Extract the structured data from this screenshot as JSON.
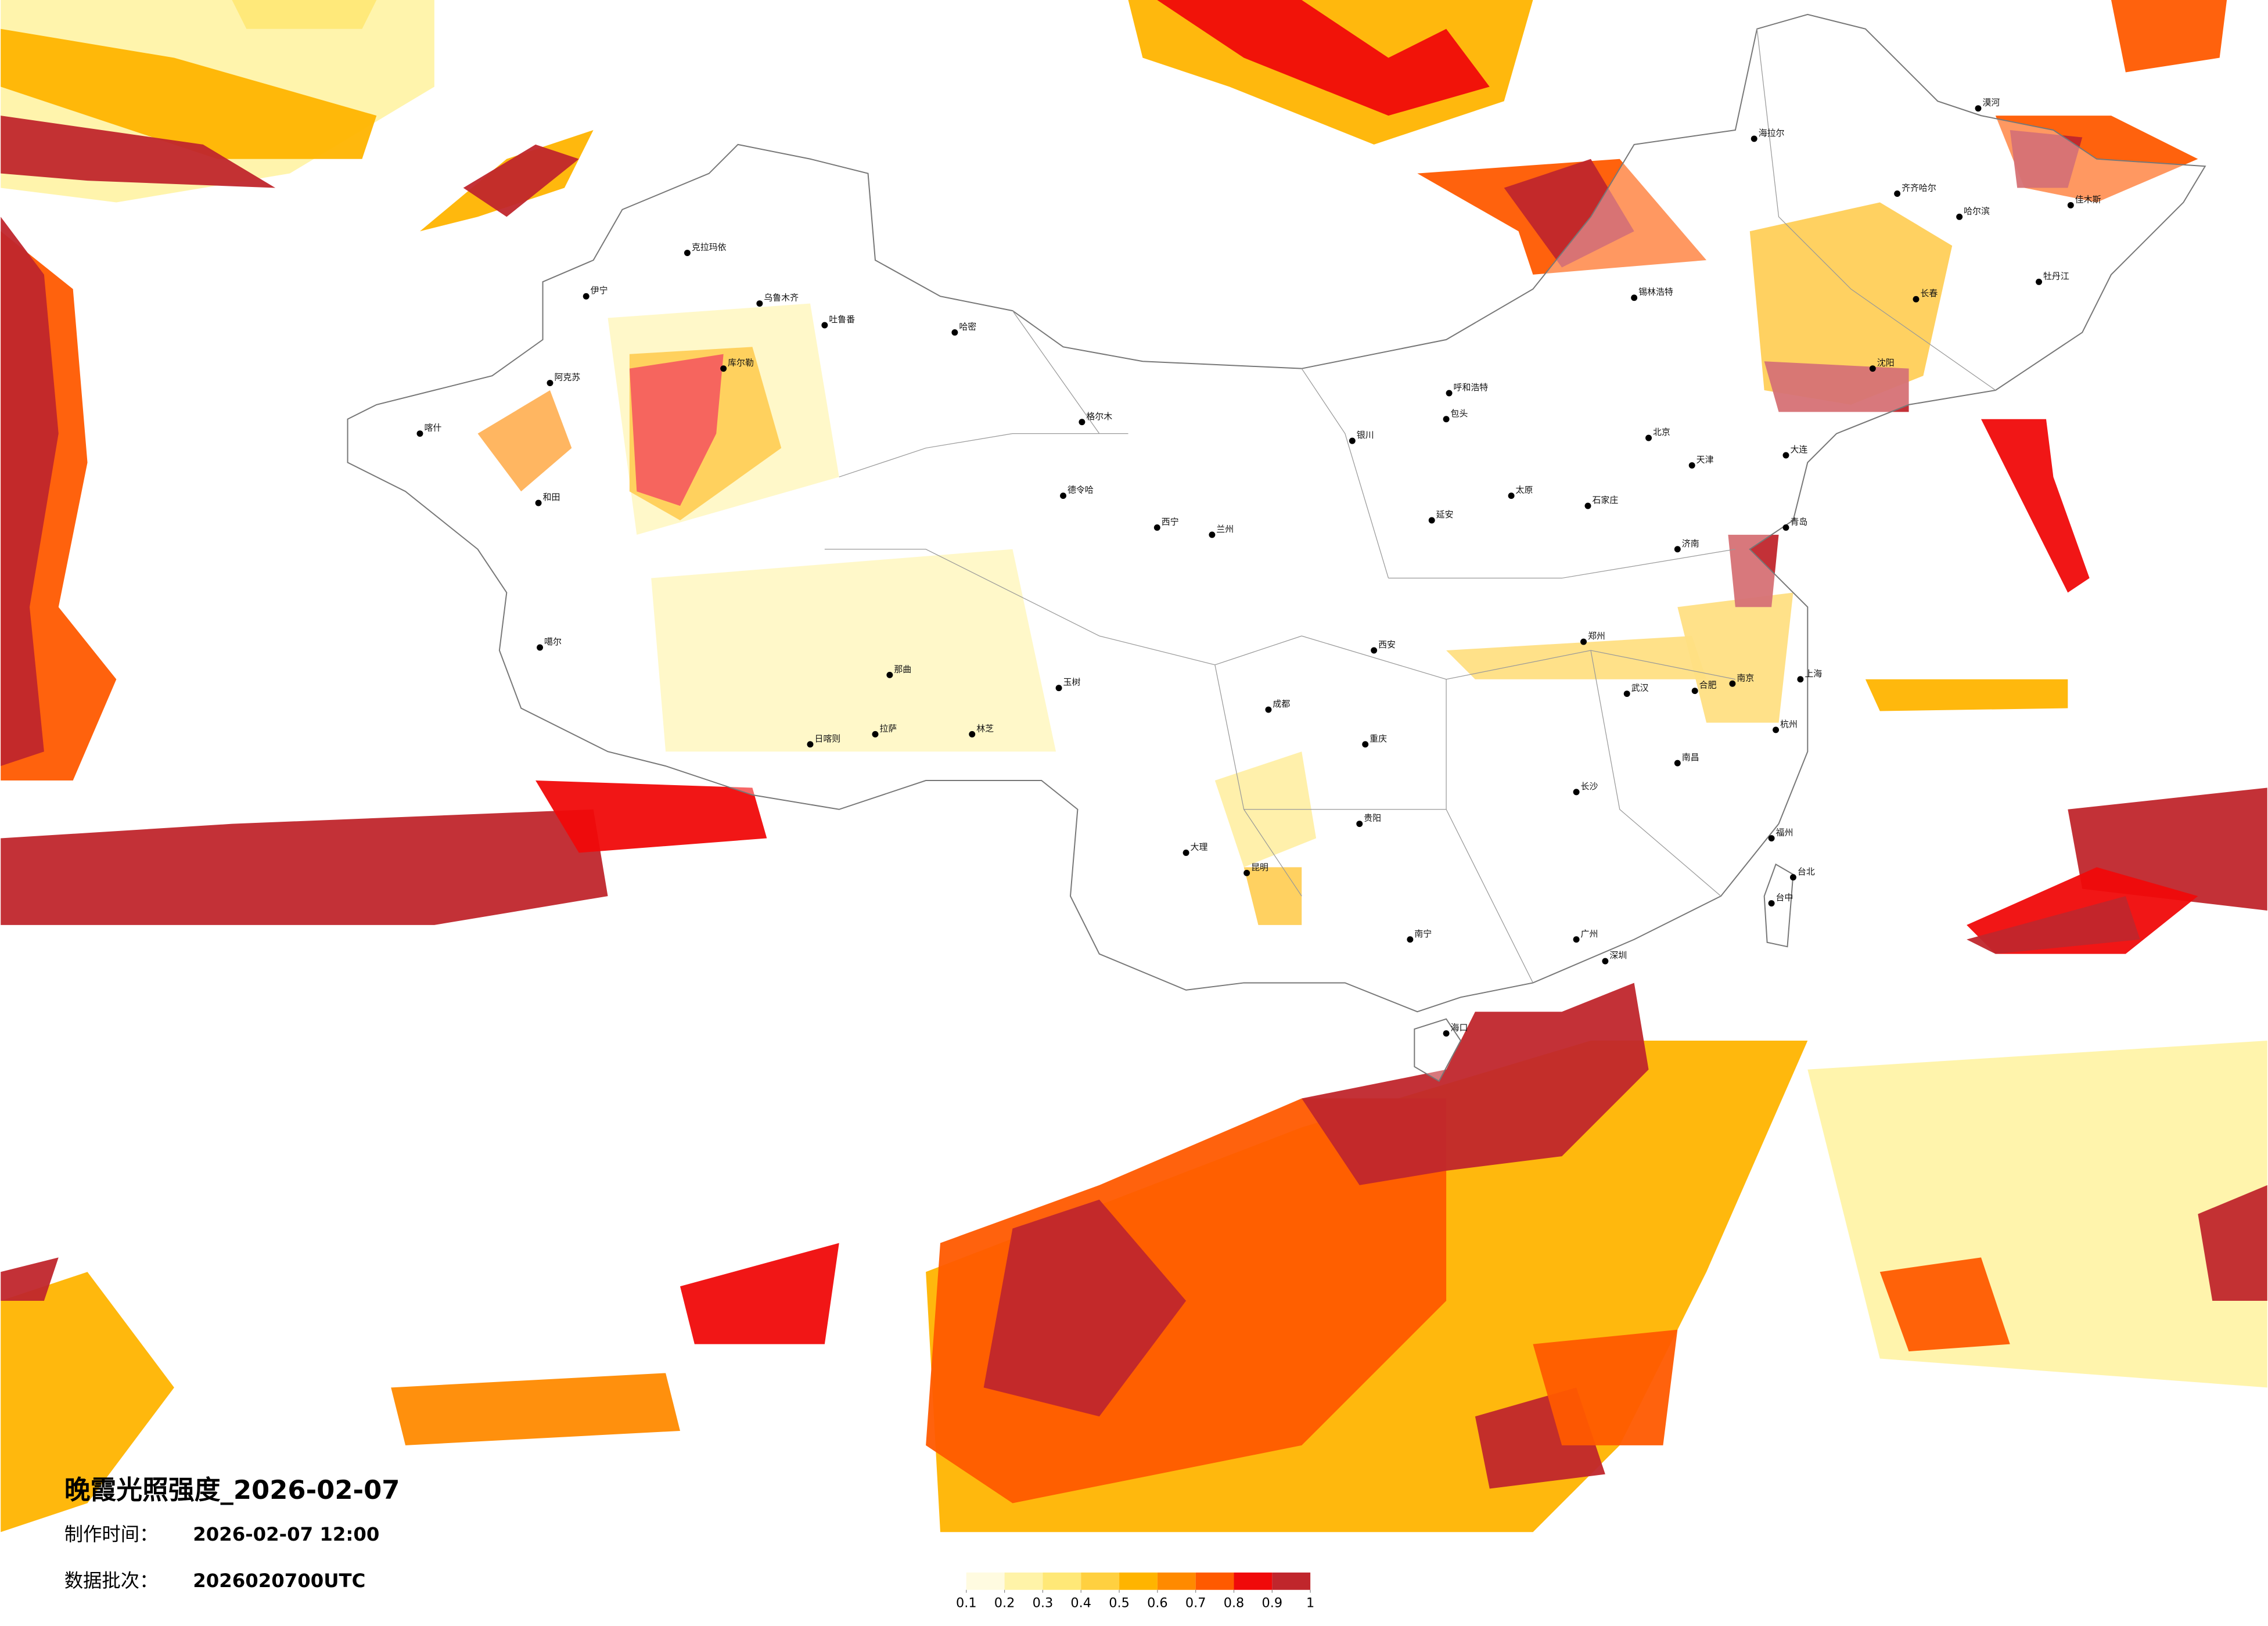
{
  "title": "晚霞光照强度_2026-02-07",
  "production": {
    "label": "制作时间：",
    "value": "2026-02-07 12:00"
  },
  "batch": {
    "label": "数据批次：",
    "value": "2026020700UTC"
  },
  "legend": {
    "colors": [
      "#fffbe0",
      "#fff3a8",
      "#ffe877",
      "#ffd040",
      "#ffb400",
      "#ff8a00",
      "#ff5a00",
      "#f00a0a",
      "#c0262c"
    ],
    "ticks": [
      0.1,
      0.2,
      0.3,
      0.4,
      0.5,
      0.6,
      0.7,
      0.8,
      0.9,
      1
    ]
  },
  "cities": [
    "克拉玛依",
    "乌鲁木齐",
    "吐鲁番",
    "哈密",
    "伊宁",
    "阿克苏",
    "喀什",
    "和田",
    "库尔勒",
    "噶尔",
    "日喀则",
    "拉萨",
    "林芝",
    "那曲",
    "玉树",
    "格尔木",
    "德令哈",
    "西宁",
    "兰州",
    "银川",
    "呼和浩特",
    "包头",
    "锡林浩特",
    "海拉尔",
    "齐齐哈尔",
    "哈尔滨",
    "牡丹江",
    "长春",
    "沈阳",
    "大连",
    "北京",
    "天津",
    "石家庄",
    "太原",
    "济南",
    "青岛",
    "郑州",
    "西安",
    "武汉",
    "南京",
    "上海",
    "杭州",
    "合肥",
    "南昌",
    "长沙",
    "福州",
    "台北",
    "台中",
    "广州",
    "深圳",
    "南宁",
    "海口",
    "贵阳",
    "昆明",
    "成都",
    "重庆",
    "大理",
    "漠河",
    "佳木斯",
    "延安"
  ]
}
